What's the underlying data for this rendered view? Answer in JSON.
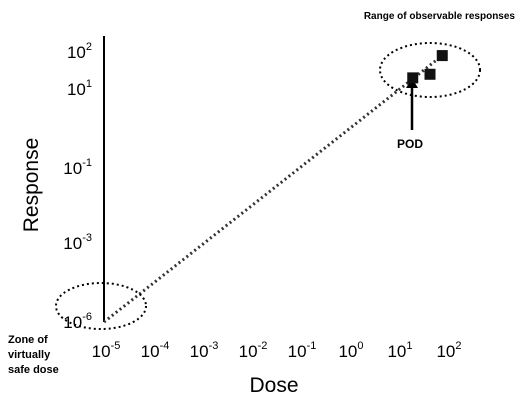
{
  "chart_data": {
    "type": "scatter",
    "title": "",
    "xlabel": "Dose",
    "ylabel": "Response",
    "x_scale": "log",
    "y_scale": "log",
    "xlim": [
      1e-05,
      100
    ],
    "ylim": [
      1e-06,
      100
    ],
    "x_ticks": [
      {
        "base": "10",
        "exp": "-5"
      },
      {
        "base": "10",
        "exp": "-4"
      },
      {
        "base": "10",
        "exp": "-3"
      },
      {
        "base": "10",
        "exp": "-2"
      },
      {
        "base": "10",
        "exp": "-1"
      },
      {
        "base": "10",
        "exp": "0"
      },
      {
        "base": "10",
        "exp": "1"
      },
      {
        "base": "10",
        "exp": "2"
      }
    ],
    "y_ticks": [
      {
        "base": "10",
        "exp": "2"
      },
      {
        "base": "10",
        "exp": "1"
      },
      {
        "base": "10",
        "exp": "-1"
      },
      {
        "base": "10",
        "exp": "-3"
      },
      {
        "base": "10",
        "exp": "-6"
      }
    ],
    "series": [
      {
        "marker": "square",
        "points": [
          {
            "x": 20,
            "y": 20
          },
          {
            "x": 45,
            "y": 25
          },
          {
            "x": 80,
            "y": 80
          }
        ]
      }
    ],
    "extrapolation_line": {
      "style": "dotted",
      "from": {
        "x": 1e-05,
        "y": 1e-06
      },
      "to": {
        "x": 80,
        "y": 80
      }
    },
    "grid": false,
    "legend": "none",
    "annotations": {
      "upper_region": "Range of observable responses",
      "pod": "POD",
      "lower_region_lines": [
        "Zone of",
        "virtually",
        "safe dose"
      ]
    }
  }
}
